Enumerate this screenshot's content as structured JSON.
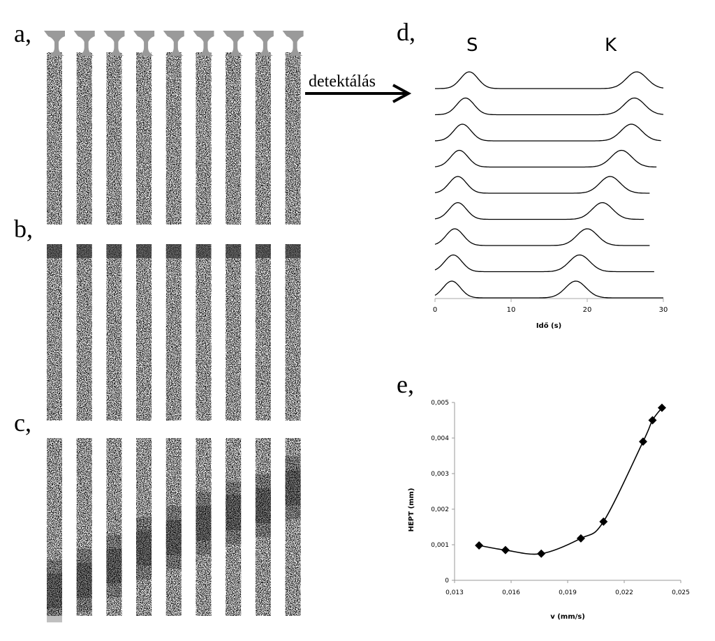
{
  "figure": {
    "panels": {
      "a": "a,",
      "b": "b,",
      "c": "c,",
      "d": "d,",
      "e": "e,"
    },
    "arrow_label": "detektálás",
    "strip_count": 9,
    "strip_color_light": "#f2f2f2",
    "strip_color_dark": "#222222",
    "cap_color": "#9a9a9a"
  },
  "chart_data": [
    {
      "panel": "d",
      "type": "line",
      "peak_labels": [
        "S",
        "K"
      ],
      "xlabel": "Idő (s)",
      "xlim": [
        0,
        30
      ],
      "xticks": [
        "0",
        "10",
        "20",
        "30"
      ],
      "grid": false,
      "traces": [
        {
          "s_peak": 4.5,
          "k_peak": 26.5,
          "end": 30.0
        },
        {
          "s_peak": 4.0,
          "k_peak": 26.2,
          "end": 30.0
        },
        {
          "s_peak": 3.6,
          "k_peak": 25.8,
          "end": 29.8
        },
        {
          "s_peak": 3.2,
          "k_peak": 24.5,
          "end": 29.2
        },
        {
          "s_peak": 3.0,
          "k_peak": 23.0,
          "end": 28.2
        },
        {
          "s_peak": 3.0,
          "k_peak": 22.0,
          "end": 27.5
        },
        {
          "s_peak": 2.6,
          "k_peak": 20.0,
          "end": 28.2
        },
        {
          "s_peak": 2.4,
          "k_peak": 19.0,
          "end": 28.8
        },
        {
          "s_peak": 2.2,
          "k_peak": 18.5,
          "end": 30.0
        }
      ]
    },
    {
      "panel": "e",
      "type": "line",
      "xlabel": "v (mm/s)",
      "ylabel": "HEPT (mm)",
      "xlim": [
        0.013,
        0.025
      ],
      "ylim": [
        0,
        0.005
      ],
      "xticks": [
        "0,013",
        "0,016",
        "0,019",
        "0,022",
        "0,025"
      ],
      "yticks": [
        "0",
        "0,001",
        "0,002",
        "0,003",
        "0,004",
        "0,005"
      ],
      "grid": false,
      "marker": "diamond",
      "x": [
        0.0143,
        0.0157,
        0.0176,
        0.0197,
        0.0209,
        0.023,
        0.0235,
        0.024
      ],
      "y": [
        0.00098,
        0.00085,
        0.00075,
        0.00118,
        0.00165,
        0.0039,
        0.0045,
        0.00485
      ]
    }
  ]
}
